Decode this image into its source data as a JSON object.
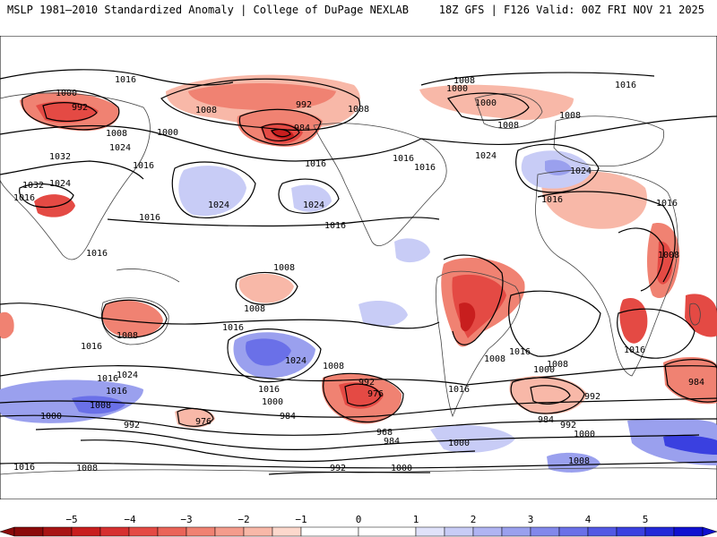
{
  "header": {
    "title_left": "MSLP 1981–2010 Standardized Anomaly | College of DuPage NEXLAB",
    "title_right": "18Z GFS | F126 Valid: 00Z FRI NOV 21 2025"
  },
  "colors": {
    "neg5": "#8b0a0a",
    "neg4": "#c81e1e",
    "neg3": "#e44a44",
    "neg2": "#f08272",
    "neg1": "#f8b8a8",
    "zero": "#ffffff",
    "pos1": "#c8ccf6",
    "pos2": "#9aa0ee",
    "pos3": "#6a70e8",
    "pos4": "#3a40e0",
    "pos5": "#1010d0",
    "land": "#444444",
    "contour": "#000000"
  },
  "colorbar": {
    "ticks": [
      "−5",
      "−4",
      "−3",
      "−2",
      "−1",
      "0",
      "1",
      "2",
      "3",
      "4",
      "5"
    ]
  },
  "contour_labels": [
    "1016",
    "1000",
    "992",
    "1008",
    "1024",
    "1032",
    "1016",
    "1032",
    "1024",
    "1016",
    "1016",
    "1008",
    "992",
    "984",
    "1000",
    "1008",
    "1016",
    "1016",
    "1016",
    "1024",
    "1024",
    "1016",
    "1008",
    "1000",
    "1000",
    "1008",
    "1016",
    "1024",
    "1016",
    "1016",
    "1008",
    "1008",
    "1008",
    "1008",
    "1016",
    "1024",
    "1016",
    "1008",
    "992",
    "976",
    "1000",
    "1016",
    "1024",
    "1016",
    "1016",
    "1000",
    "1008",
    "976",
    "984",
    "968",
    "984",
    "992",
    "1000",
    "1008",
    "1000",
    "992",
    "984",
    "992",
    "1000",
    "1008",
    "984",
    "1016",
    "1008",
    "992",
    "1000",
    "1008",
    "1016",
    "1008",
    "1016",
    "1016",
    "1016",
    "1024"
  ]
}
